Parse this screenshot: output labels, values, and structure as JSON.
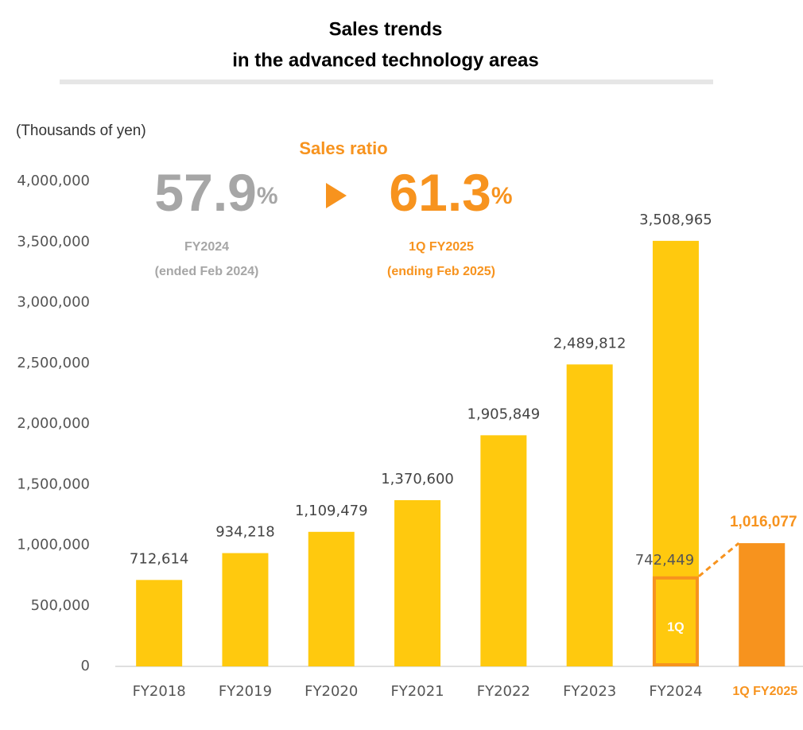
{
  "chart_data": {
    "type": "bar",
    "title": [
      "Sales trends",
      "in the advanced technology areas"
    ],
    "y_label": "(Thousands of yen)",
    "annotation_title": "Sales ratio",
    "ratios": [
      {
        "value": 57.9,
        "unit": "%",
        "label": "FY2024",
        "sublabel": "(ended Feb 2024)",
        "color": "#a6a6a6"
      },
      {
        "value": 61.3,
        "unit": "%",
        "label": "1Q FY2025",
        "sublabel": "(ending Feb 2025)",
        "color": "#f7931e"
      }
    ],
    "categories": [
      "FY2018",
      "FY2019",
      "FY2020",
      "FY2021",
      "FY2022",
      "FY2023",
      "FY2024",
      "1Q FY2025"
    ],
    "values": [
      712614,
      934218,
      1109479,
      1370600,
      1905849,
      2489812,
      3508965,
      1016077
    ],
    "value_labels": [
      "712,614",
      "934,218",
      "1,109,479",
      "1,370,600",
      "1,905,849",
      "2,489,812",
      "3,508,965",
      "1,016,077"
    ],
    "colors": [
      "#ffc90e",
      "#ffc90e",
      "#ffc90e",
      "#ffc90e",
      "#ffc90e",
      "#ffc90e",
      "#ffc90e",
      "#f7931e"
    ],
    "subseries": {
      "name": "1Q",
      "color": "#ffc90e",
      "outline": "#f7931e",
      "values": [
        null,
        null,
        null,
        null,
        null,
        null,
        742449,
        null
      ],
      "value_labels": [
        null,
        null,
        null,
        null,
        null,
        null,
        "742,449",
        null
      ]
    },
    "ylim": [
      0,
      4000000
    ],
    "yticks": [
      0,
      {
        "value": 500000,
        "label": "500,000"
      },
      {
        "value": 1000000,
        "label": "1,000,000"
      },
      {
        "value": 1500000,
        "label": "1,500,000"
      },
      {
        "value": 2000000,
        "label": "2,000,000"
      },
      {
        "value": 2500000,
        "label": "2,500,000"
      },
      {
        "value": 3000000,
        "label": "3,000,000"
      },
      {
        "value": 3500000,
        "label": "3,500,000"
      },
      {
        "value": 4000000,
        "label": "4,000,000"
      }
    ],
    "grid": false
  }
}
